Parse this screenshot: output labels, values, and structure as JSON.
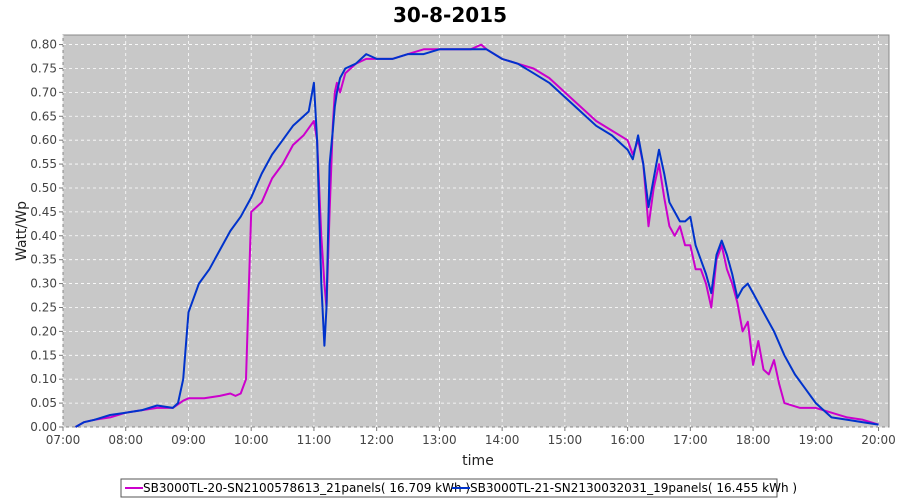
{
  "chart_data": {
    "type": "line",
    "title": "30-8-2015",
    "xlabel": "time",
    "ylabel": "Watt/Wp",
    "xlim": [
      "07:00",
      "20:10"
    ],
    "ylim": [
      0,
      0.82
    ],
    "x_ticks": [
      "07:00",
      "08:00",
      "09:00",
      "10:00",
      "11:00",
      "12:00",
      "13:00",
      "14:00",
      "15:00",
      "16:00",
      "17:00",
      "18:00",
      "19:00",
      "20:00"
    ],
    "y_ticks": [
      "0.00",
      "0.05",
      "0.10",
      "0.15",
      "0.20",
      "0.25",
      "0.30",
      "0.35",
      "0.40",
      "0.45",
      "0.50",
      "0.55",
      "0.60",
      "0.65",
      "0.70",
      "0.75",
      "0.80"
    ],
    "grid": true,
    "legend_position": "bottom",
    "background_color": "#c8c8c8",
    "series": [
      {
        "name": "SB3000TL-20-SN2100578613_21panels( 16.709 kWh )",
        "color": "#cc00cc",
        "x": [
          "07:12",
          "07:20",
          "07:30",
          "07:45",
          "08:00",
          "08:15",
          "08:30",
          "08:45",
          "08:55",
          "09:00",
          "09:15",
          "09:30",
          "09:40",
          "09:45",
          "09:50",
          "09:55",
          "10:00",
          "10:10",
          "10:20",
          "10:30",
          "10:40",
          "10:50",
          "11:00",
          "11:03",
          "11:07",
          "11:10",
          "11:12",
          "11:15",
          "11:18",
          "11:20",
          "11:22",
          "11:25",
          "11:30",
          "11:40",
          "11:50",
          "12:00",
          "12:15",
          "12:30",
          "12:45",
          "13:00",
          "13:15",
          "13:30",
          "13:40",
          "13:45",
          "14:00",
          "14:15",
          "14:30",
          "14:45",
          "15:00",
          "15:15",
          "15:30",
          "15:45",
          "16:00",
          "16:05",
          "16:10",
          "16:15",
          "16:20",
          "16:25",
          "16:30",
          "16:35",
          "16:40",
          "16:45",
          "16:50",
          "16:55",
          "17:00",
          "17:05",
          "17:10",
          "17:15",
          "17:20",
          "17:25",
          "17:30",
          "17:35",
          "17:40",
          "17:45",
          "17:50",
          "17:55",
          "18:00",
          "18:05",
          "18:10",
          "18:15",
          "18:20",
          "18:25",
          "18:30",
          "18:45",
          "19:00",
          "19:15",
          "19:30",
          "19:45",
          "20:00"
        ],
        "y": [
          0.0,
          0.01,
          0.015,
          0.02,
          0.03,
          0.035,
          0.04,
          0.04,
          0.055,
          0.06,
          0.06,
          0.065,
          0.07,
          0.065,
          0.07,
          0.1,
          0.45,
          0.47,
          0.52,
          0.55,
          0.59,
          0.61,
          0.64,
          0.6,
          0.4,
          0.3,
          0.25,
          0.45,
          0.63,
          0.7,
          0.72,
          0.7,
          0.74,
          0.76,
          0.77,
          0.77,
          0.77,
          0.78,
          0.79,
          0.79,
          0.79,
          0.79,
          0.8,
          0.79,
          0.77,
          0.76,
          0.75,
          0.73,
          0.7,
          0.67,
          0.64,
          0.62,
          0.6,
          0.57,
          0.6,
          0.55,
          0.42,
          0.5,
          0.55,
          0.48,
          0.42,
          0.4,
          0.42,
          0.38,
          0.38,
          0.33,
          0.33,
          0.3,
          0.25,
          0.35,
          0.38,
          0.33,
          0.3,
          0.26,
          0.2,
          0.22,
          0.13,
          0.18,
          0.12,
          0.11,
          0.14,
          0.09,
          0.05,
          0.04,
          0.04,
          0.03,
          0.02,
          0.015,
          0.005
        ]
      },
      {
        "name": "SB3000TL-21-SN2130032031_19panels( 16.455 kWh )",
        "color": "#0033cc",
        "x": [
          "07:12",
          "07:20",
          "07:30",
          "07:45",
          "08:00",
          "08:15",
          "08:30",
          "08:45",
          "08:50",
          "08:55",
          "09:00",
          "09:10",
          "09:20",
          "09:30",
          "09:40",
          "09:50",
          "10:00",
          "10:10",
          "10:20",
          "10:30",
          "10:40",
          "10:50",
          "10:55",
          "11:00",
          "11:03",
          "11:07",
          "11:10",
          "11:12",
          "11:15",
          "11:18",
          "11:20",
          "11:22",
          "11:25",
          "11:30",
          "11:40",
          "11:50",
          "12:00",
          "12:15",
          "12:30",
          "12:45",
          "13:00",
          "13:15",
          "13:30",
          "13:45",
          "14:00",
          "14:15",
          "14:30",
          "14:45",
          "15:00",
          "15:15",
          "15:30",
          "15:45",
          "16:00",
          "16:05",
          "16:10",
          "16:15",
          "16:20",
          "16:25",
          "16:30",
          "16:35",
          "16:40",
          "16:45",
          "16:50",
          "16:55",
          "17:00",
          "17:05",
          "17:10",
          "17:15",
          "17:20",
          "17:25",
          "17:30",
          "17:35",
          "17:40",
          "17:45",
          "17:50",
          "17:55",
          "18:00",
          "18:10",
          "18:20",
          "18:30",
          "18:40",
          "18:50",
          "19:00",
          "19:15",
          "19:30",
          "19:45",
          "20:00"
        ],
        "y": [
          0.0,
          0.01,
          0.015,
          0.025,
          0.03,
          0.035,
          0.045,
          0.04,
          0.05,
          0.1,
          0.24,
          0.3,
          0.33,
          0.37,
          0.41,
          0.44,
          0.48,
          0.53,
          0.57,
          0.6,
          0.63,
          0.65,
          0.66,
          0.72,
          0.6,
          0.3,
          0.17,
          0.25,
          0.55,
          0.62,
          0.67,
          0.7,
          0.73,
          0.75,
          0.76,
          0.78,
          0.77,
          0.77,
          0.78,
          0.78,
          0.79,
          0.79,
          0.79,
          0.79,
          0.77,
          0.76,
          0.74,
          0.72,
          0.69,
          0.66,
          0.63,
          0.61,
          0.58,
          0.56,
          0.61,
          0.55,
          0.46,
          0.52,
          0.58,
          0.53,
          0.47,
          0.45,
          0.43,
          0.43,
          0.44,
          0.38,
          0.35,
          0.32,
          0.28,
          0.36,
          0.39,
          0.36,
          0.32,
          0.27,
          0.29,
          0.3,
          0.28,
          0.24,
          0.2,
          0.15,
          0.11,
          0.08,
          0.05,
          0.02,
          0.015,
          0.01,
          0.005
        ]
      }
    ]
  }
}
